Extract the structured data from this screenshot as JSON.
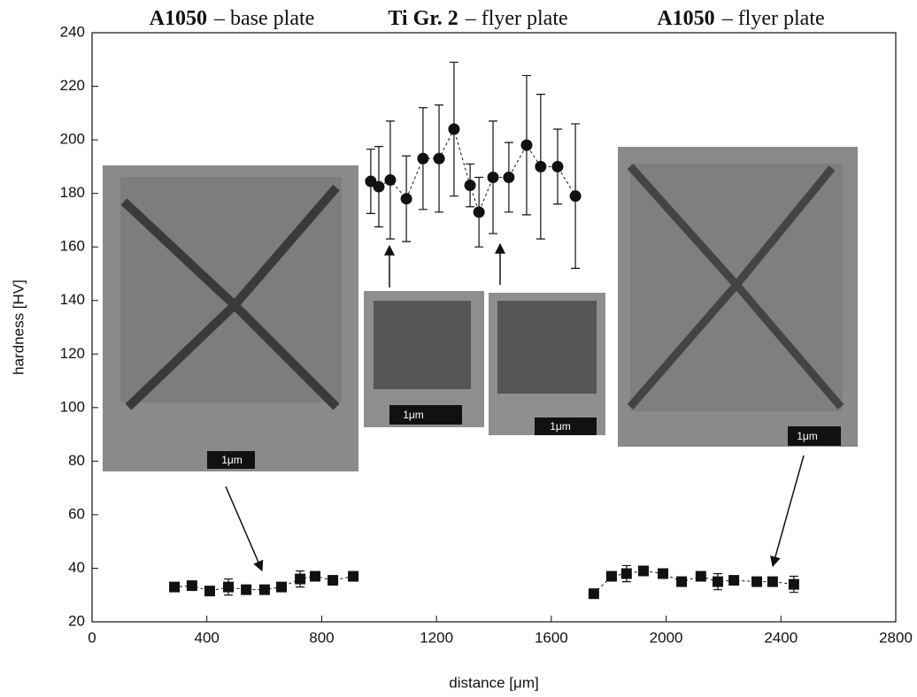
{
  "chart_data": {
    "type": "scatter",
    "xlabel": "distance [μm]",
    "ylabel": "hardness [HV]",
    "xlim": [
      0,
      2800
    ],
    "xticks": [
      0,
      400,
      800,
      1200,
      1600,
      2000,
      2400,
      2800
    ],
    "ylim": [
      20,
      240
    ],
    "yticks": [
      20,
      40,
      60,
      80,
      100,
      120,
      140,
      160,
      180,
      200,
      220,
      240
    ],
    "annotations": [
      {
        "bold": "A1050",
        "text": "– base plate"
      },
      {
        "bold": "Ti Gr. 2",
        "text": "– flyer plate"
      },
      {
        "bold": "A1050",
        "text": "– flyer plate"
      }
    ],
    "scale_labels": [
      "1μm",
      "1μm",
      "1μm",
      "1μm"
    ],
    "series": [
      {
        "marker": "square",
        "color": "#111111",
        "x": [
          287,
          348,
          410,
          475,
          537,
          601,
          660,
          725,
          777,
          839,
          910
        ],
        "values": [
          33,
          33.5,
          31.5,
          33,
          32,
          32,
          33,
          36,
          37,
          35.5,
          37
        ],
        "errors": [
          1,
          1.5,
          1,
          3,
          1,
          1,
          1,
          3,
          1.5,
          1,
          1.5
        ]
      },
      {
        "marker": "circle",
        "color": "#111111",
        "x": [
          971,
          999,
          1039,
          1095,
          1153,
          1209,
          1261,
          1317,
          1348,
          1397,
          1452,
          1514,
          1563,
          1622,
          1684
        ],
        "values": [
          184.5,
          182.5,
          185,
          178,
          193,
          193,
          204,
          183,
          173,
          186,
          186,
          198,
          190,
          190,
          179
        ],
        "errors": [
          12,
          15,
          22,
          16,
          19,
          20,
          25,
          8,
          13,
          21,
          13,
          26,
          27,
          14,
          27
        ]
      },
      {
        "marker": "square",
        "color": "#111111",
        "x": [
          1748,
          1810,
          1862,
          1921,
          1989,
          2054,
          2121,
          2180,
          2236,
          2316,
          2371,
          2445
        ],
        "values": [
          30.5,
          37,
          38,
          39,
          38,
          35,
          37,
          35,
          35.5,
          35,
          35,
          34
        ],
        "errors": [
          1,
          1.5,
          3,
          1.5,
          1.5,
          1,
          1.5,
          3,
          1,
          1,
          1,
          3
        ]
      }
    ]
  }
}
